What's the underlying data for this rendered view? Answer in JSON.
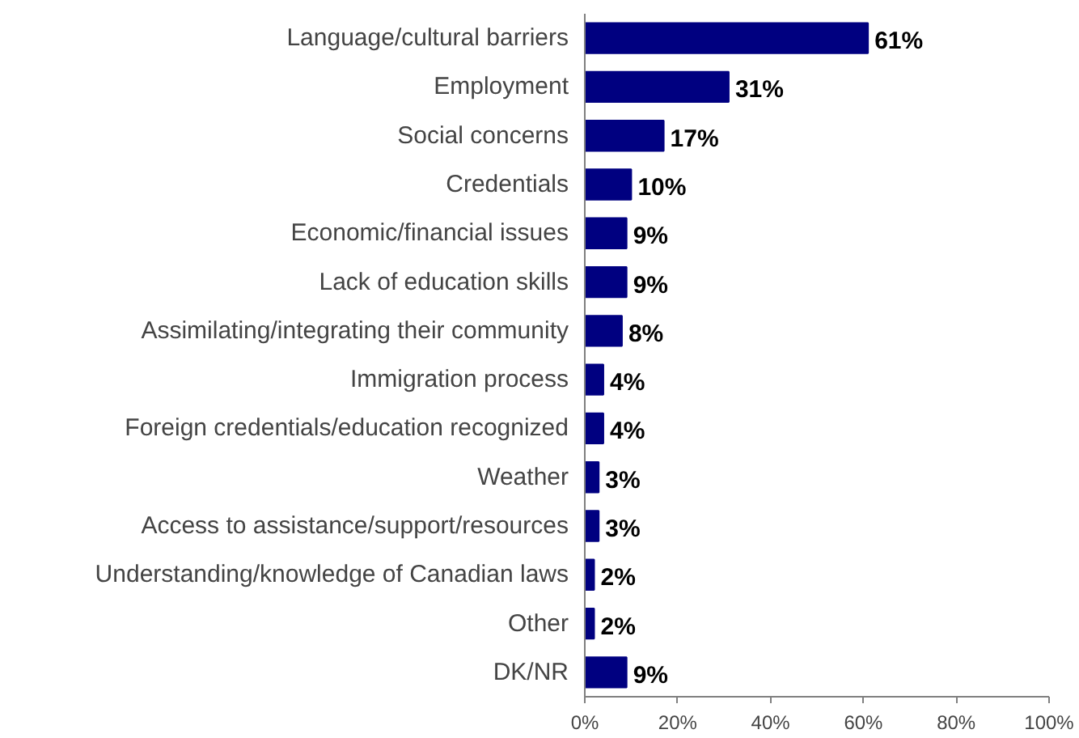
{
  "chart_data": {
    "type": "bar",
    "orientation": "horizontal",
    "categories": [
      "Language/cultural barriers",
      "Employment",
      "Social concerns",
      "Credentials",
      "Economic/financial issues",
      "Lack of education skills",
      "Assimilating/integrating their community",
      "Immigration process",
      "Foreign credentials/education recognized",
      "Weather",
      "Access to assistance/support/resources",
      "Understanding/knowledge of Canadian laws",
      "Other",
      "DK/NR"
    ],
    "values": [
      61,
      31,
      17,
      10,
      9,
      9,
      8,
      4,
      4,
      3,
      3,
      2,
      2,
      9
    ],
    "value_labels": [
      "61%",
      "31%",
      "17%",
      "10%",
      "9%",
      "9%",
      "8%",
      "4%",
      "4%",
      "3%",
      "3%",
      "2%",
      "2%",
      "9%"
    ],
    "color": "#000080",
    "xlim": [
      0,
      100
    ],
    "xticks": [
      {
        "value": 0,
        "label": "0%"
      },
      {
        "value": 20,
        "label": "20%"
      },
      {
        "value": 40,
        "label": "40%"
      },
      {
        "value": 60,
        "label": "60%"
      },
      {
        "value": 80,
        "label": "80%"
      },
      {
        "value": 100,
        "label": "100%"
      }
    ],
    "grid": false
  }
}
